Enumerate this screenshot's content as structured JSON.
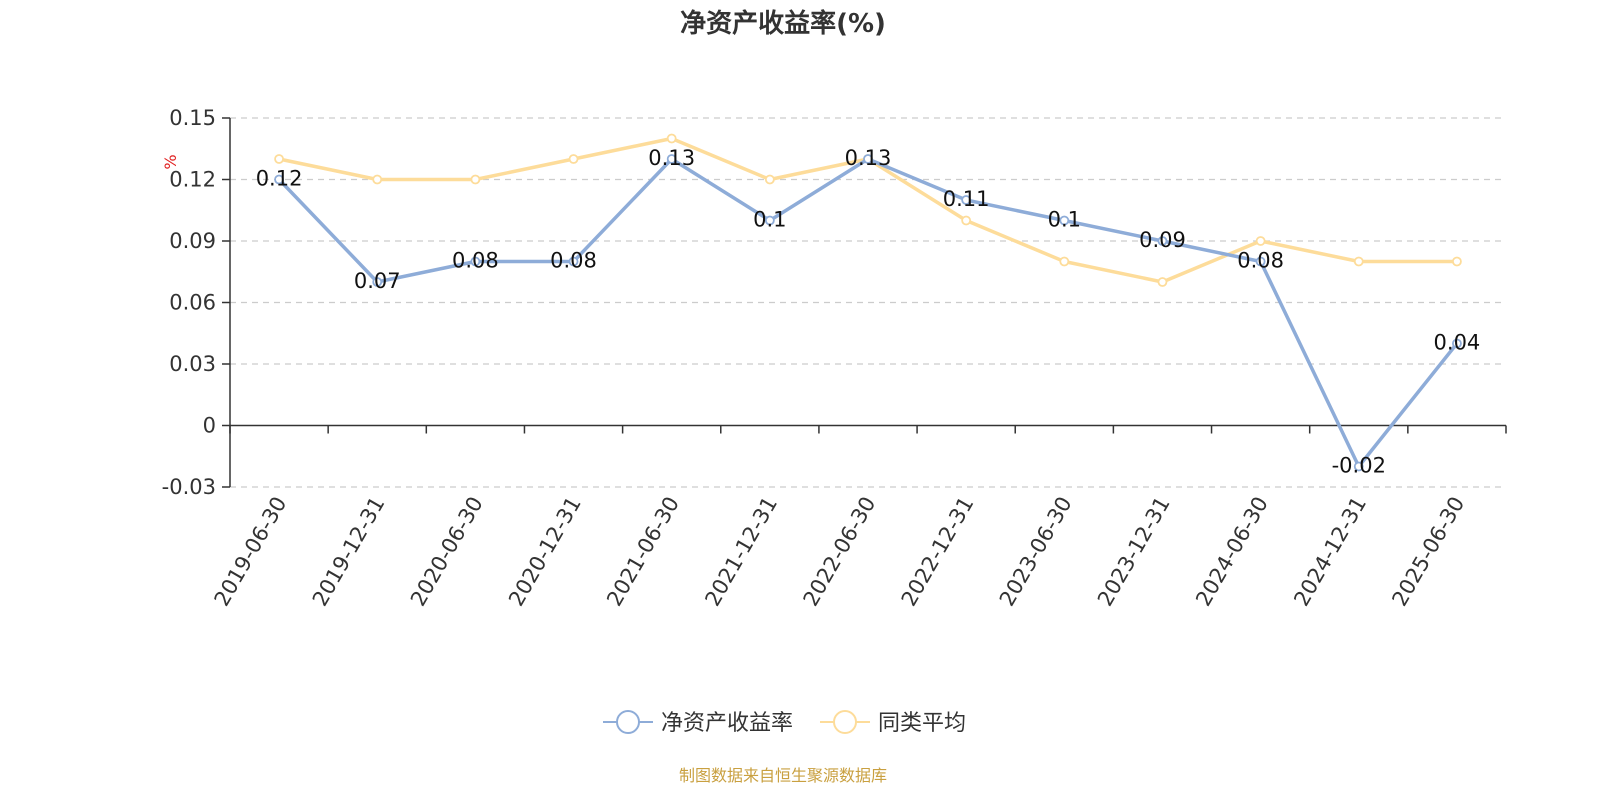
{
  "chart_data": {
    "type": "line",
    "title": "净资产收益率(%)",
    "ylabel": "%",
    "ylim": [
      -0.03,
      0.15
    ],
    "yticks": [
      "0.15",
      "0.12",
      "0.09",
      "0.06",
      "0.03",
      "0",
      "-0.03"
    ],
    "ytick_values": [
      0.15,
      0.12,
      0.09,
      0.06,
      0.03,
      0,
      -0.03
    ],
    "categories": [
      "2019-06-30",
      "2019-12-31",
      "2020-06-30",
      "2020-12-31",
      "2021-06-30",
      "2021-12-31",
      "2022-06-30",
      "2022-12-31",
      "2023-06-30",
      "2023-12-31",
      "2024-06-30",
      "2024-12-31",
      "2025-06-30"
    ],
    "series": [
      {
        "name": "净资产收益率",
        "color": "#8eacd8",
        "values": [
          0.12,
          0.07,
          0.08,
          0.08,
          0.13,
          0.1,
          0.13,
          0.11,
          0.1,
          0.09,
          0.08,
          -0.02,
          0.04
        ],
        "labels": [
          "0.12",
          "0.07",
          "0.08",
          "0.08",
          "0.13",
          "0.1",
          "0.13",
          "0.11",
          "0.1",
          "0.09",
          "0.08",
          "-0.02",
          "0.04"
        ]
      },
      {
        "name": "同类平均",
        "color": "#fddc9a",
        "values": [
          0.13,
          0.12,
          0.12,
          0.13,
          0.14,
          0.12,
          0.13,
          0.1,
          0.08,
          0.07,
          0.09,
          0.08,
          0.08
        ]
      }
    ],
    "grid": true,
    "legend_position": "bottom-center"
  },
  "source_note": "制图数据来自恒生聚源数据库"
}
